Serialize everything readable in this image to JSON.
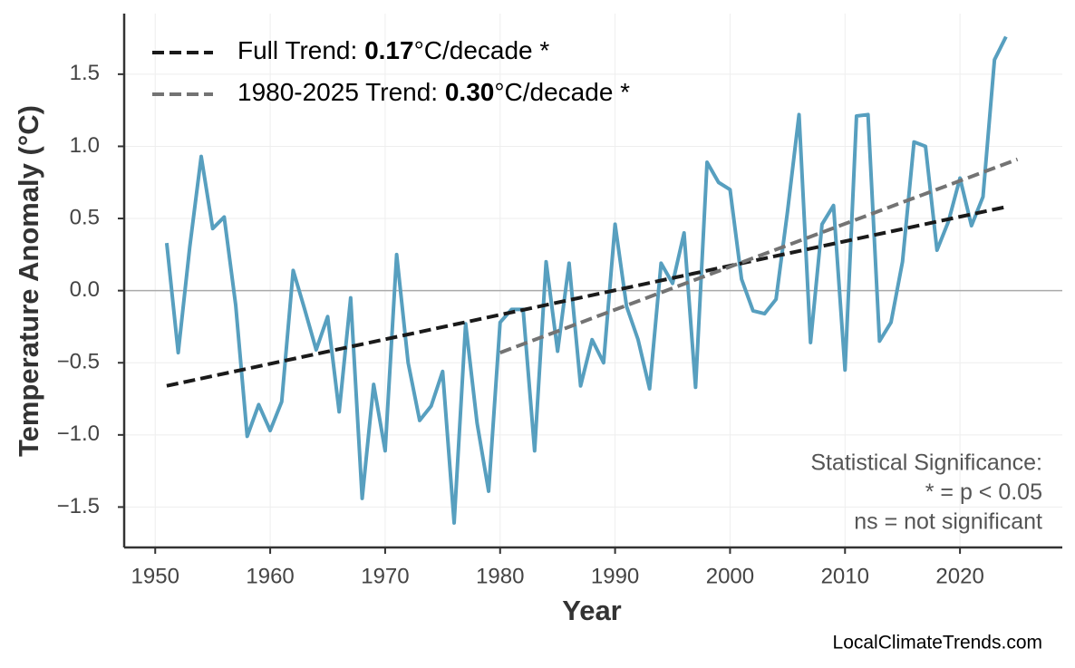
{
  "chart_data": {
    "type": "line",
    "x_label": "Year",
    "y_label": "Temperature Anomaly (°C)",
    "x": [
      1951,
      1952,
      1953,
      1954,
      1955,
      1956,
      1957,
      1958,
      1959,
      1960,
      1961,
      1962,
      1963,
      1964,
      1965,
      1966,
      1967,
      1968,
      1969,
      1970,
      1971,
      1972,
      1973,
      1974,
      1975,
      1976,
      1977,
      1978,
      1979,
      1980,
      1981,
      1982,
      1983,
      1984,
      1985,
      1986,
      1987,
      1988,
      1989,
      1990,
      1991,
      1992,
      1993,
      1994,
      1995,
      1996,
      1997,
      1998,
      1999,
      2000,
      2001,
      2002,
      2003,
      2004,
      2005,
      2006,
      2007,
      2008,
      2009,
      2010,
      2011,
      2012,
      2013,
      2014,
      2015,
      2016,
      2017,
      2018,
      2019,
      2020,
      2021,
      2022,
      2023,
      2024
    ],
    "series": [
      {
        "color": "#579fbf",
        "values": [
          0.33,
          -0.43,
          0.3,
          0.93,
          0.43,
          0.51,
          -0.1,
          -1.01,
          -0.79,
          -0.97,
          -0.77,
          0.14,
          -0.13,
          -0.41,
          -0.18,
          -0.84,
          -0.05,
          -1.44,
          -0.65,
          -1.11,
          0.25,
          -0.5,
          -0.9,
          -0.8,
          -0.56,
          -1.61,
          -0.23,
          -0.92,
          -1.39,
          -0.22,
          -0.13,
          -0.13,
          -1.11,
          0.2,
          -0.42,
          0.19,
          -0.66,
          -0.34,
          -0.5,
          0.46,
          -0.11,
          -0.34,
          -0.68,
          0.19,
          0.05,
          0.4,
          -0.67,
          0.89,
          0.75,
          0.7,
          0.08,
          -0.14,
          -0.16,
          -0.06,
          0.55,
          1.22,
          -0.36,
          0.46,
          0.59,
          -0.55,
          1.21,
          1.22,
          -0.35,
          -0.22,
          0.2,
          1.03,
          1.0,
          0.28,
          0.48,
          0.78,
          0.45,
          0.65,
          1.6,
          1.76
        ]
      }
    ],
    "trends": [
      {
        "label": [
          "Full Trend: ",
          "0.17",
          "°C/decade *"
        ],
        "color": "#1a1a1a",
        "x": [
          1951,
          2024
        ],
        "values": [
          -0.66,
          0.58
        ]
      },
      {
        "label": [
          "1980-2025 Trend: ",
          "0.30",
          "°C/decade *"
        ],
        "color": "#737373",
        "x": [
          1980,
          2025
        ],
        "values": [
          -0.43,
          0.91
        ]
      }
    ],
    "xlim": [
      1947.3,
      2028.9
    ],
    "ylim": [
      -1.78,
      1.92
    ],
    "xticks": [
      1950,
      1960,
      1970,
      1980,
      1990,
      2000,
      2010,
      2020
    ],
    "yticks": [
      {
        "value": -1.5,
        "label": "−1.5"
      },
      {
        "value": -1.0,
        "label": "−1.0"
      },
      {
        "value": -0.5,
        "label": "−0.5"
      },
      {
        "value": 0,
        "label": "0.0"
      },
      {
        "value": 0.5,
        "label": "0.5"
      },
      {
        "value": 1.0,
        "label": "1.0"
      },
      {
        "value": 1.5,
        "label": "1.5"
      }
    ],
    "grid": true,
    "annotation": [
      "Statistical Significance:",
      "* = p < 0.05",
      "ns = not significant"
    ],
    "watermark": "LocalClimateTrends.com"
  }
}
